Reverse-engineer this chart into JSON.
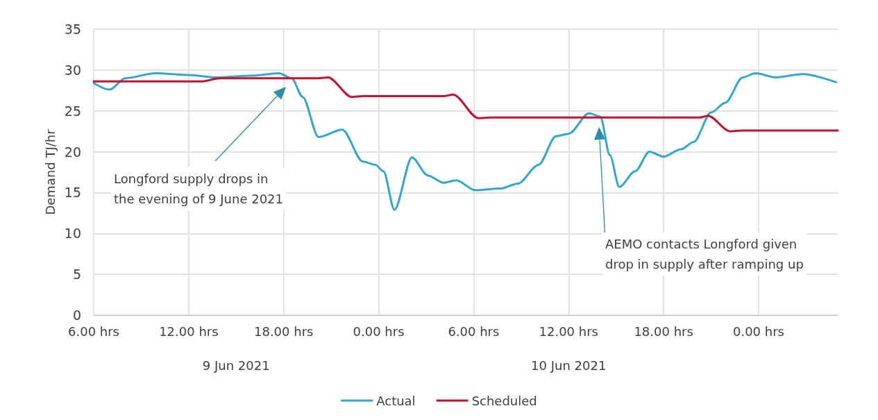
{
  "chart_data": {
    "type": "line",
    "ylabel": "Demand TJ/hr",
    "xlim": [
      "2021-06-09T06:00",
      "2021-06-11T05:00"
    ],
    "xticks": [
      {
        "value": "2021-06-09T06:00",
        "label": "6.00 hrs"
      },
      {
        "value": "2021-06-09T12:00",
        "label": "12.00 hrs"
      },
      {
        "value": "2021-06-09T18:00",
        "label": "18.00 hrs"
      },
      {
        "value": "2021-06-10T00:00",
        "label": "0.00 hrs"
      },
      {
        "value": "2021-06-10T06:00",
        "label": "6.00 hrs"
      },
      {
        "value": "2021-06-10T12:00",
        "label": "12.00 hrs"
      },
      {
        "value": "2021-06-10T18:00",
        "label": "18.00 hrs"
      },
      {
        "value": "2021-06-11T00:00",
        "label": "0.00 hrs"
      }
    ],
    "ylim": [
      0,
      35
    ],
    "yticks": [
      0,
      5,
      10,
      15,
      20,
      25,
      30,
      35
    ],
    "grid": true,
    "legend": "bottom",
    "marker": "none",
    "line_style": "solid",
    "series": [
      {
        "name": "Actual",
        "color": "#2fa8cc",
        "x": [
          "2021-06-09T06:00",
          "2021-06-09T07:00",
          "2021-06-09T08:00",
          "2021-06-09T09:54",
          "2021-06-09T12:00",
          "2021-06-09T13:42",
          "2021-06-09T16:00",
          "2021-06-09T17:42",
          "2021-06-09T18:30",
          "2021-06-09T19:12",
          "2021-06-09T20:12",
          "2021-06-09T21:42",
          "2021-06-09T23:00",
          "2021-06-09T23:48",
          "2021-06-10T00:18",
          "2021-06-10T01:00",
          "2021-06-10T02:06",
          "2021-06-10T03:06",
          "2021-06-10T04:06",
          "2021-06-10T04:54",
          "2021-06-10T06:06",
          "2021-06-10T07:42",
          "2021-06-10T08:48",
          "2021-06-10T10:06",
          "2021-06-10T11:12",
          "2021-06-10T12:00",
          "2021-06-10T13:18",
          "2021-06-10T14:00",
          "2021-06-10T14:36",
          "2021-06-10T15:12",
          "2021-06-10T16:12",
          "2021-06-10T17:06",
          "2021-06-10T18:00",
          "2021-06-10T19:06",
          "2021-06-10T19:54",
          "2021-06-10T21:00",
          "2021-06-10T21:54",
          "2021-06-10T23:00",
          "2021-06-10T23:48",
          "2021-06-11T01:06",
          "2021-06-11T02:48",
          "2021-06-11T04:54"
        ],
        "values": [
          28.4,
          27.6,
          29.0,
          29.6,
          29.4,
          29.1,
          29.3,
          29.6,
          29.0,
          26.7,
          21.8,
          22.7,
          18.8,
          18.4,
          17.6,
          12.9,
          19.3,
          17.1,
          16.2,
          16.5,
          15.3,
          15.5,
          16.1,
          18.4,
          21.9,
          22.2,
          24.7,
          24.3,
          19.6,
          15.7,
          17.6,
          20.0,
          19.4,
          20.3,
          21.2,
          24.8,
          26.0,
          29.1,
          29.6,
          29.1,
          29.5,
          28.5
        ]
      },
      {
        "name": "Scheduled",
        "color": "#c8102e",
        "x": [
          "2021-06-09T06:00",
          "2021-06-09T12:48",
          "2021-06-09T14:00",
          "2021-06-09T20:12",
          "2021-06-09T20:48",
          "2021-06-09T22:18",
          "2021-06-09T23:00",
          "2021-06-10T04:06",
          "2021-06-10T04:42",
          "2021-06-10T06:18",
          "2021-06-10T07:00",
          "2021-06-10T20:18",
          "2021-06-10T20:48",
          "2021-06-10T22:12",
          "2021-06-10T23:00",
          "2021-06-11T05:00"
        ],
        "values": [
          28.6,
          28.6,
          29.0,
          29.0,
          29.1,
          26.7,
          26.8,
          26.8,
          27.0,
          24.1,
          24.2,
          24.2,
          24.4,
          22.5,
          22.6,
          22.6
        ]
      }
    ],
    "annotations": [
      "Longford supply drops in\nthe evening of 9 June 2021",
      "AEMO contacts Longford given\ndrop in supply after ramping up",
      "9 Jun 2021",
      "10 Jun 2021"
    ]
  }
}
